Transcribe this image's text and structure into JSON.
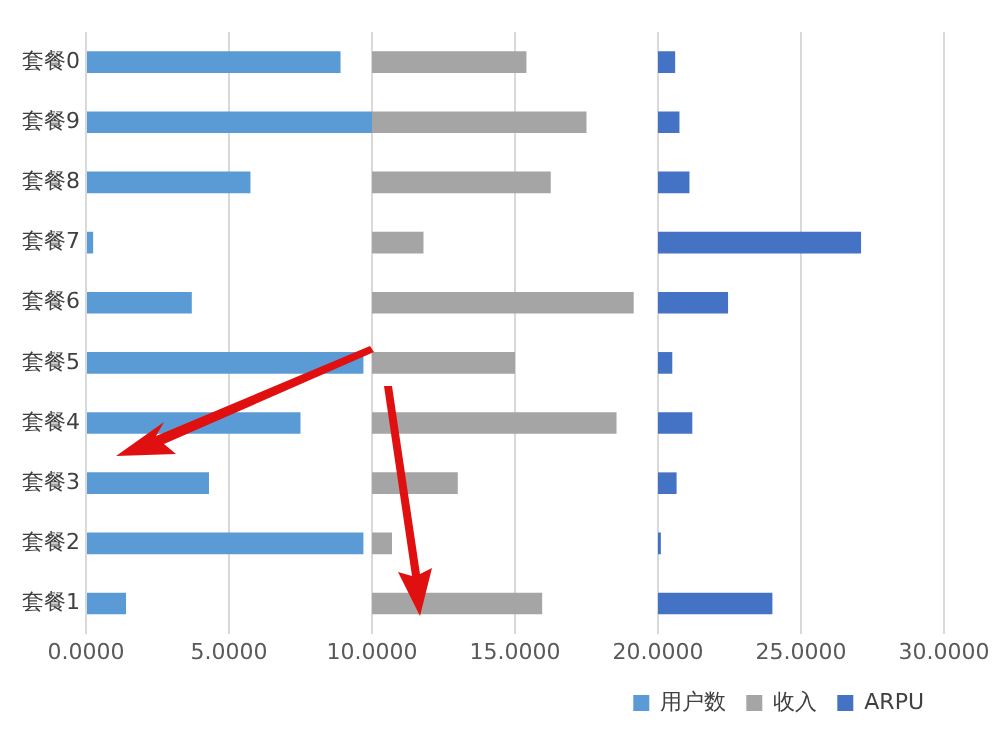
{
  "chart_data": {
    "type": "bar",
    "orientation": "horizontal",
    "categories": [
      "套餐0",
      "套餐9",
      "套餐8",
      "套餐7",
      "套餐6",
      "套餐5",
      "套餐4",
      "套餐3",
      "套餐2",
      "套餐1"
    ],
    "series": [
      {
        "name": "用户数",
        "color": "#5b9bd5",
        "base": [
          0,
          0,
          0,
          0,
          0,
          0,
          0,
          0,
          0,
          0
        ],
        "values": [
          8.9,
          10.0,
          5.75,
          0.25,
          3.7,
          9.7,
          7.5,
          4.3,
          9.7,
          1.4
        ]
      },
      {
        "name": "收入",
        "color": "#a5a5a5",
        "base": [
          10,
          10,
          10,
          10,
          10,
          10,
          10,
          10,
          10,
          10
        ],
        "values": [
          5.4,
          7.5,
          6.25,
          1.8,
          9.15,
          5.0,
          8.55,
          3.0,
          0.7,
          5.95
        ]
      },
      {
        "name": "ARPU",
        "color": "#4472c4",
        "base": [
          20,
          20,
          20,
          20,
          20,
          20,
          20,
          20,
          20,
          20
        ],
        "values": [
          0.6,
          0.75,
          1.1,
          7.1,
          2.45,
          0.5,
          1.2,
          0.65,
          0.1,
          4.0
        ]
      }
    ],
    "xlim": [
      0,
      30
    ],
    "xticks": [
      {
        "value": 0,
        "label": "0.0000"
      },
      {
        "value": 5,
        "label": "5.0000"
      },
      {
        "value": 10,
        "label": "10.0000"
      },
      {
        "value": 15,
        "label": "15.0000"
      },
      {
        "value": 20,
        "label": "20.0000"
      },
      {
        "value": 25,
        "label": "25.0000"
      },
      {
        "value": 30,
        "label": "30.0000"
      }
    ],
    "grid": "x",
    "legend": "bottom right"
  }
}
